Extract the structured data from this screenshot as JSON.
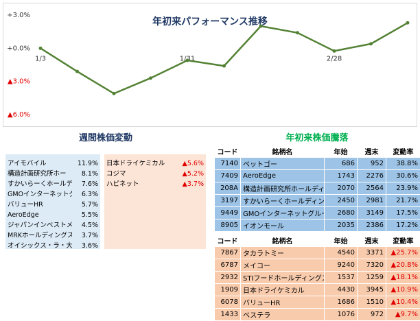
{
  "chart_data": {
    "type": "line",
    "title": "年初来パフォーマンス推移",
    "categories": [
      "1/3",
      null,
      null,
      null,
      "1/31",
      null,
      null,
      null,
      "2/28",
      null,
      null
    ],
    "series": [
      {
        "color": "#548235",
        "values": [
          0,
          -2.1,
          -4.1,
          -2.7,
          -1.1,
          -1.6,
          2.0,
          1.4,
          -0.25,
          0.4,
          2.3
        ]
      }
    ],
    "ylim": [
      -6,
      3
    ],
    "yticks": [
      {
        "value": 3,
        "label": "+3.0%"
      },
      {
        "value": 0,
        "label": "+0.0%"
      },
      {
        "value": -3,
        "label": "▲3.0%"
      },
      {
        "value": -6,
        "label": "▲6.0%"
      }
    ]
  },
  "weekly": {
    "title": "週間株価変動",
    "gainers": [
      [
        "アイモバイル",
        "11.9%"
      ],
      [
        "構造計画研究所ホー",
        "8.1%"
      ],
      [
        "すかいらーくホールディ",
        "7.6%"
      ],
      [
        "GMOインターネットグ",
        "6.3%"
      ],
      [
        "バリューHR",
        "5.7%"
      ],
      [
        "AeroEdge",
        "5.5%"
      ],
      [
        "ジャパンインベストメン",
        "4.5%"
      ],
      [
        "MRKホールディングス",
        "3.7%"
      ],
      [
        "オイシックス・ラ・大地",
        "3.6%"
      ]
    ],
    "losers": [
      [
        "日本ドライケミカル",
        "▲5.6%"
      ],
      [
        "コジマ",
        "▲5.2%"
      ],
      [
        "ハピネット",
        "▲3.7%"
      ]
    ]
  },
  "ytd": {
    "title": "年初来株価騰落",
    "header": [
      "コード",
      "銘柄名",
      "年始",
      "週末",
      "変動率"
    ],
    "gainers": [
      [
        "7140",
        "ペットゴー",
        "686",
        "952",
        "38.8%"
      ],
      [
        "7409",
        "AeroEdge",
        "1743",
        "2276",
        "30.6%"
      ],
      [
        "208A",
        "構造計画研究所ホールディング",
        "2070",
        "2564",
        "23.9%"
      ],
      [
        "3197",
        "すかいらーくホールディングス",
        "2450",
        "2981",
        "21.7%"
      ],
      [
        "9449",
        "GMOインターネットグループ",
        "2680",
        "3149",
        "17.5%"
      ],
      [
        "8905",
        "イオンモール",
        "2035",
        "2386",
        "17.2%"
      ]
    ],
    "losers": [
      [
        "7867",
        "タカラトミー",
        "4540",
        "3371",
        "▲25.7%"
      ],
      [
        "6787",
        "メイコー",
        "9240",
        "7320",
        "▲20.8%"
      ],
      [
        "2932",
        "STIフードホールディングス",
        "1537",
        "1259",
        "▲18.1%"
      ],
      [
        "1909",
        "日本ドライケミカル",
        "4430",
        "3945",
        "▲10.9%"
      ],
      [
        "6078",
        "バリューHR",
        "1686",
        "1510",
        "▲10.4%"
      ],
      [
        "1433",
        "ベステラ",
        "1076",
        "972",
        "▲9.7%"
      ]
    ]
  }
}
